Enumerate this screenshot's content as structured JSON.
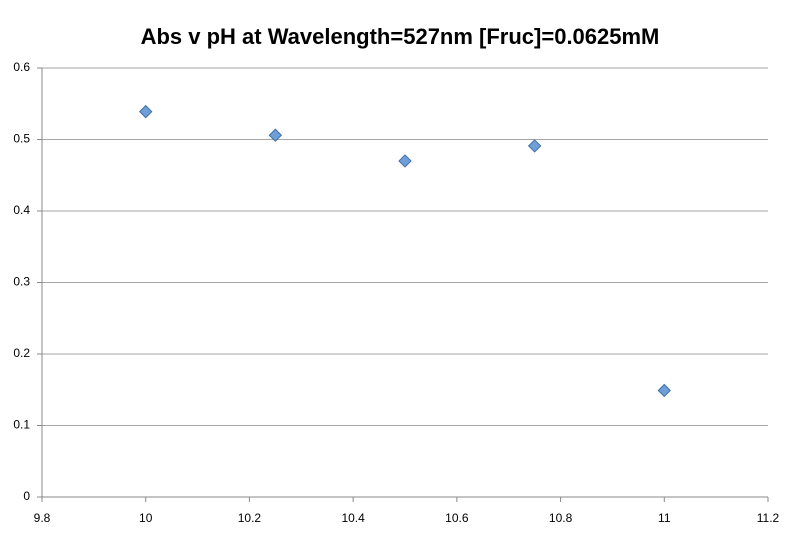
{
  "chart_data": {
    "type": "scatter",
    "title": "Abs v pH at Wavelength=527nm [Fruc]=0.0625mM",
    "series": [
      {
        "x": [
          10,
          10.25,
          10.5,
          10.75,
          11
        ],
        "values": [
          0.539,
          0.506,
          0.47,
          0.491,
          0.149
        ],
        "color": "#6f9fd8"
      }
    ],
    "xlim": [
      9.8,
      11.2
    ],
    "xticks": [
      9.8,
      10,
      10.2,
      10.4,
      10.6,
      10.8,
      11,
      11.2
    ],
    "ylim": [
      0,
      0.6
    ],
    "yticks": [
      0,
      0.1,
      0.2,
      0.3,
      0.4,
      0.5,
      0.6
    ],
    "grid": true
  }
}
